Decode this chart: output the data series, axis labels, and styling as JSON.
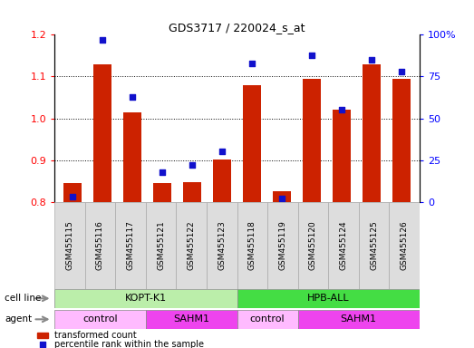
{
  "title": "GDS3717 / 220024_s_at",
  "samples": [
    "GSM455115",
    "GSM455116",
    "GSM455117",
    "GSM455121",
    "GSM455122",
    "GSM455123",
    "GSM455118",
    "GSM455119",
    "GSM455120",
    "GSM455124",
    "GSM455125",
    "GSM455126"
  ],
  "transformed_count": [
    0.845,
    1.13,
    1.015,
    0.845,
    0.848,
    0.902,
    1.08,
    0.825,
    1.095,
    1.02,
    1.13,
    1.095
  ],
  "percentile_rank": [
    3,
    97,
    63,
    18,
    22,
    30,
    83,
    2,
    88,
    55,
    85,
    78
  ],
  "ylim_left": [
    0.8,
    1.2
  ],
  "ylim_right": [
    0,
    100
  ],
  "yticks_left": [
    0.8,
    0.9,
    1.0,
    1.1,
    1.2
  ],
  "yticks_right": [
    0,
    25,
    50,
    75,
    100
  ],
  "bar_color": "#cc2200",
  "dot_color": "#1111cc",
  "cell_line_groups": [
    {
      "label": "KOPT-K1",
      "start": 0,
      "end": 6,
      "color": "#bbeeaa"
    },
    {
      "label": "HPB-ALL",
      "start": 6,
      "end": 12,
      "color": "#44dd44"
    }
  ],
  "agent_groups": [
    {
      "label": "control",
      "start": 0,
      "end": 3,
      "color": "#ffbbff"
    },
    {
      "label": "SAHM1",
      "start": 3,
      "end": 6,
      "color": "#ee44ee"
    },
    {
      "label": "control",
      "start": 6,
      "end": 8,
      "color": "#ffbbff"
    },
    {
      "label": "SAHM1",
      "start": 8,
      "end": 12,
      "color": "#ee44ee"
    }
  ],
  "legend_bar_label": "transformed count",
  "legend_dot_label": "percentile rank within the sample",
  "cell_line_label": "cell line",
  "agent_label": "agent"
}
